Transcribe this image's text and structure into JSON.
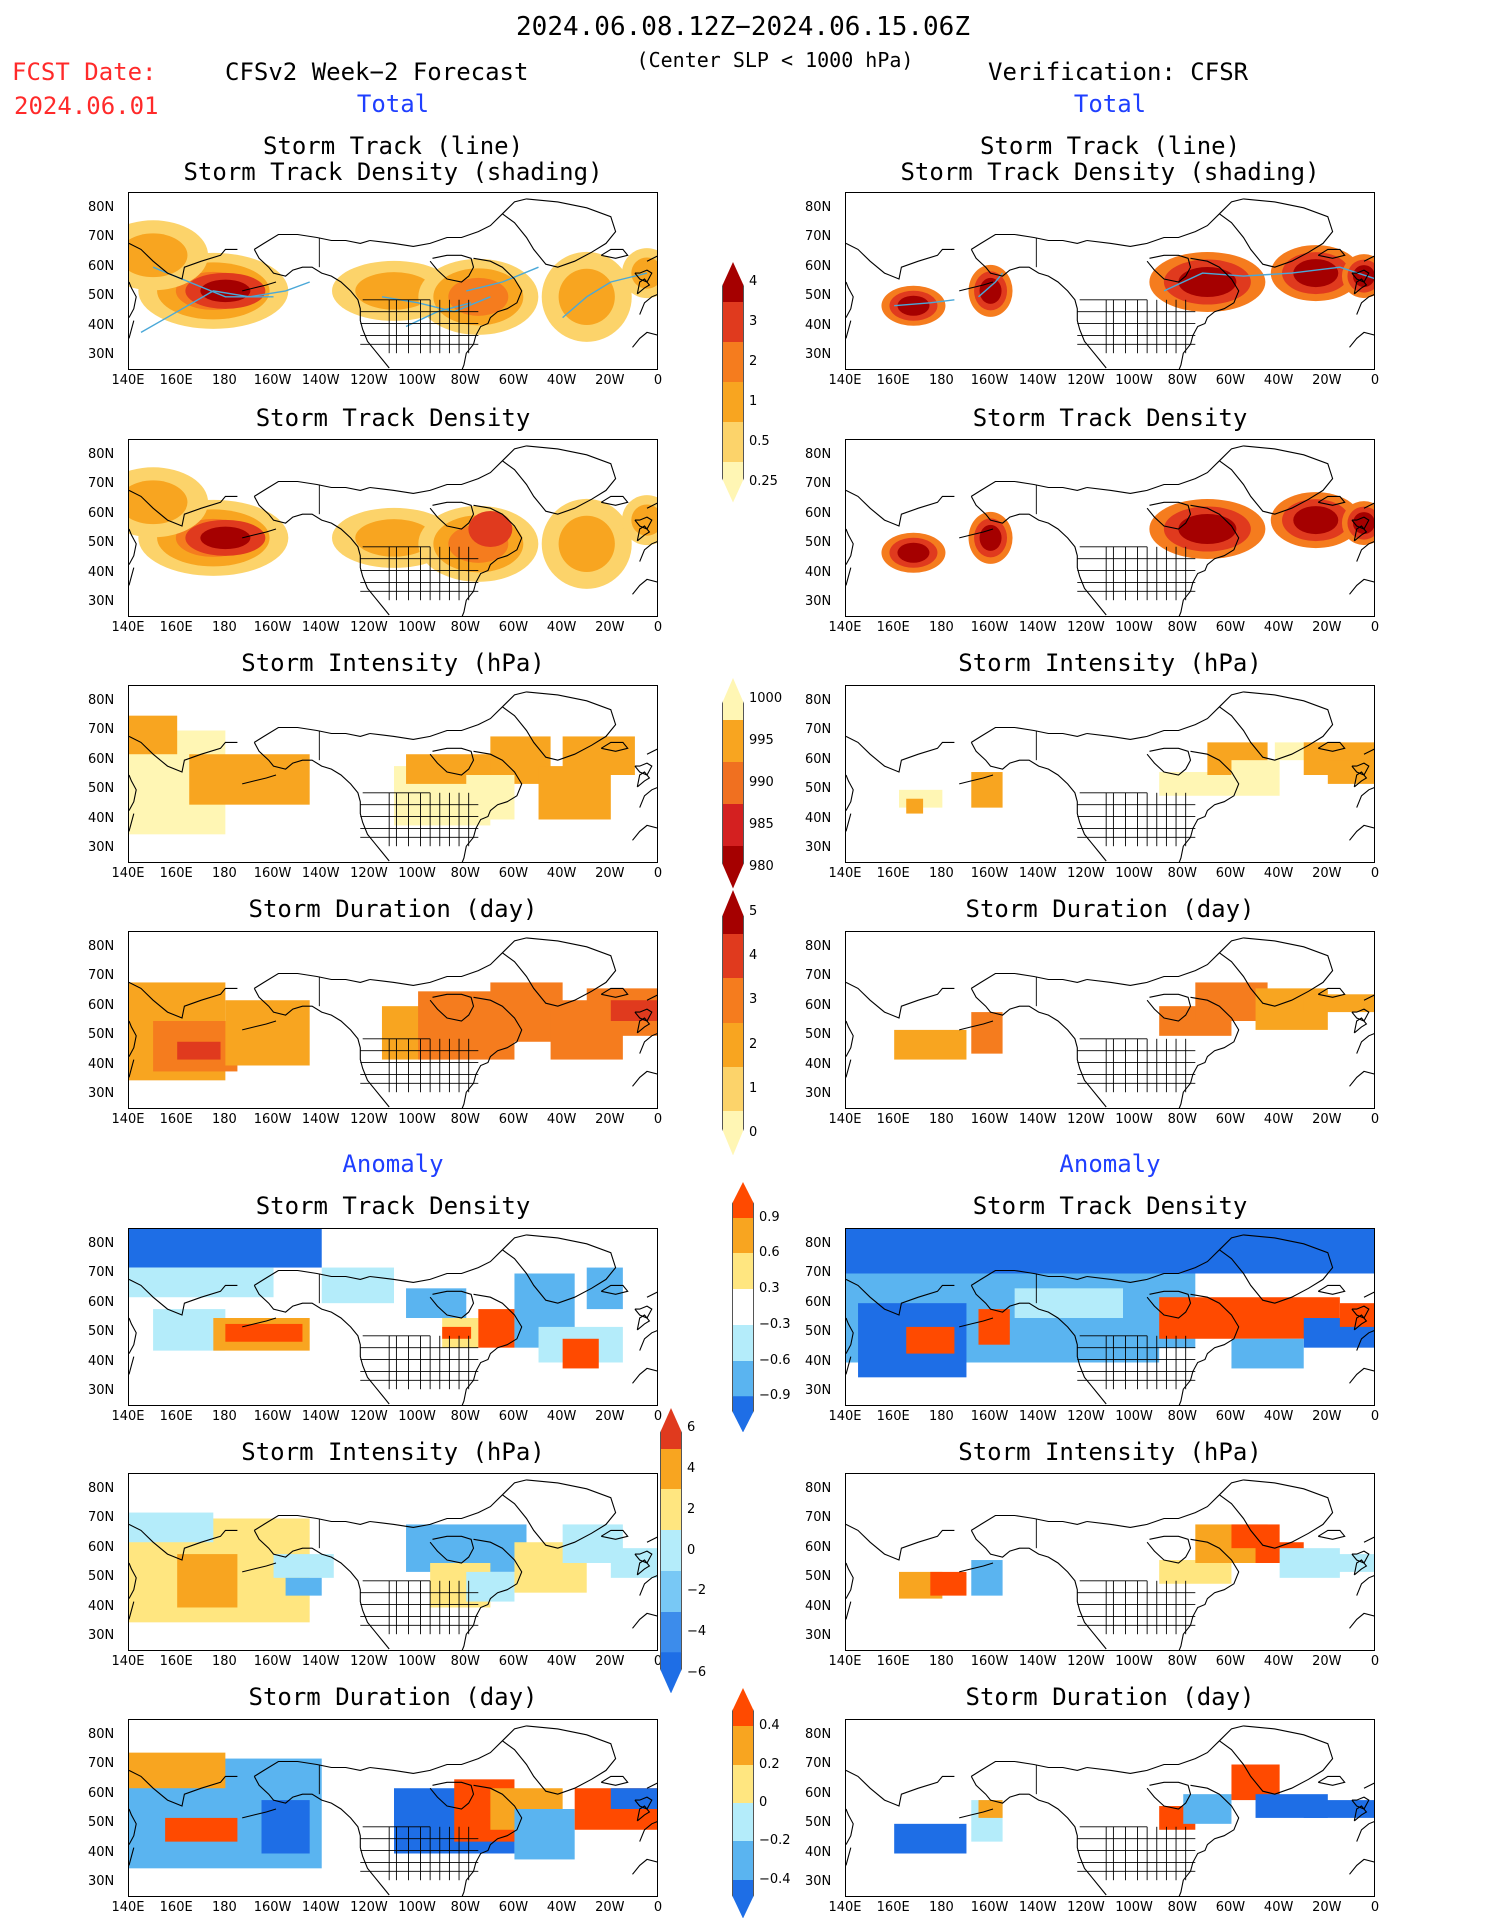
{
  "header": {
    "title": "2024.06.08.12Z−2024.06.15.06Z",
    "subtitle": "(Center SLP < 1000 hPa)",
    "fcst_label": "FCST Date:",
    "fcst_date": "2024.06.01",
    "left_title": "CFSv2 Week−2 Forecast",
    "right_title": "Verification: CFSR",
    "total_label": "Total",
    "anomaly_label": "Anomaly"
  },
  "panel_titles": {
    "track_line": "Storm Track (line)",
    "track_shading": "Storm Track Density (shading)",
    "density": "Storm Track Density",
    "intensity": "Storm Intensity (hPa)",
    "duration": "Storm Duration (day)"
  },
  "axes": {
    "lat_ticks": [
      "80N",
      "70N",
      "60N",
      "50N",
      "40N",
      "30N"
    ],
    "lon_ticks": [
      "140E",
      "160E",
      "180",
      "160W",
      "140W",
      "120W",
      "100W",
      "80W",
      "60W",
      "40W",
      "20W",
      "0"
    ]
  },
  "colorbars": {
    "density": {
      "labels": [
        "4",
        "3",
        "2",
        "1",
        "0.5",
        "0.25"
      ],
      "colors": [
        "#a50000",
        "#e03a1e",
        "#f57c1e",
        "#f8a520",
        "#fcd36a",
        "#fff6b4"
      ]
    },
    "intensity": {
      "labels": [
        "1000",
        "995",
        "990",
        "985",
        "980"
      ],
      "colors": [
        "#fff6b4",
        "#f8a520",
        "#f07020",
        "#d42020",
        "#a50000"
      ]
    },
    "duration": {
      "labels": [
        "5",
        "4",
        "3",
        "2",
        "1",
        "0"
      ],
      "colors": [
        "#a50000",
        "#e03a1e",
        "#f57c1e",
        "#f8a520",
        "#fcd36a",
        "#fff6b4"
      ]
    },
    "anom_density": {
      "labels": [
        "0.9",
        "0.6",
        "0.3",
        "−0.3",
        "−0.6",
        "−0.9"
      ],
      "colors": [
        "#ff4a00",
        "#f8a520",
        "#ffe680",
        "#ffffff",
        "#b4ecfa",
        "#5ab4f0",
        "#1e6ee6"
      ]
    },
    "anom_intensity": {
      "labels": [
        "6",
        "4",
        "2",
        "0",
        "−2",
        "−4",
        "−6"
      ],
      "colors": [
        "#e03a1e",
        "#f8a520",
        "#ffe680",
        "#b4ecfa",
        "#78c8f5",
        "#3c8ceb",
        "#1e6ee6"
      ]
    },
    "anom_duration": {
      "labels": [
        "0.4",
        "0.2",
        "0",
        "−0.2",
        "−0.4"
      ],
      "colors": [
        "#ff4a00",
        "#f8a520",
        "#ffe680",
        "#b4ecfa",
        "#5ab4f0",
        "#1e6ee6"
      ]
    }
  }
}
